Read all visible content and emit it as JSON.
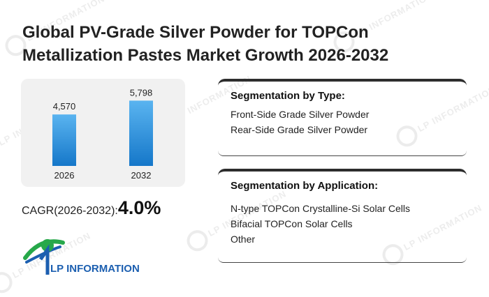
{
  "title_line1": "Global PV-Grade Silver Powder for TOPCon",
  "title_line2": "Metallization Pastes Market Growth 2026-2032",
  "chart_data": {
    "type": "bar",
    "categories": [
      "2026",
      "2032"
    ],
    "values": [
      4570,
      5798
    ],
    "value_labels": [
      "4,570",
      "5,798"
    ],
    "ylim": [
      0,
      6500
    ],
    "grid": false,
    "bar_color_top": "#5ab4f0",
    "bar_color_bottom": "#1577c9"
  },
  "cagr": {
    "label": "CAGR(2026-2032):",
    "value": "4.0%"
  },
  "segmentation_type": {
    "title": "Segmentation by Type:",
    "items": [
      "Front-Side Grade Silver Powder",
      "Rear-Side Grade Silver Powder"
    ]
  },
  "segmentation_application": {
    "title": "Segmentation by Application:",
    "items": [
      "N-type TOPCon Crystalline-Si Solar Cells",
      "Bifacial TOPCon Solar Cells",
      "Other"
    ]
  },
  "logo": {
    "text": "LP INFORMATION",
    "color_green": "#27a84a",
    "color_blue": "#1c5fb0"
  },
  "watermark_text": "LP INFORMATION"
}
